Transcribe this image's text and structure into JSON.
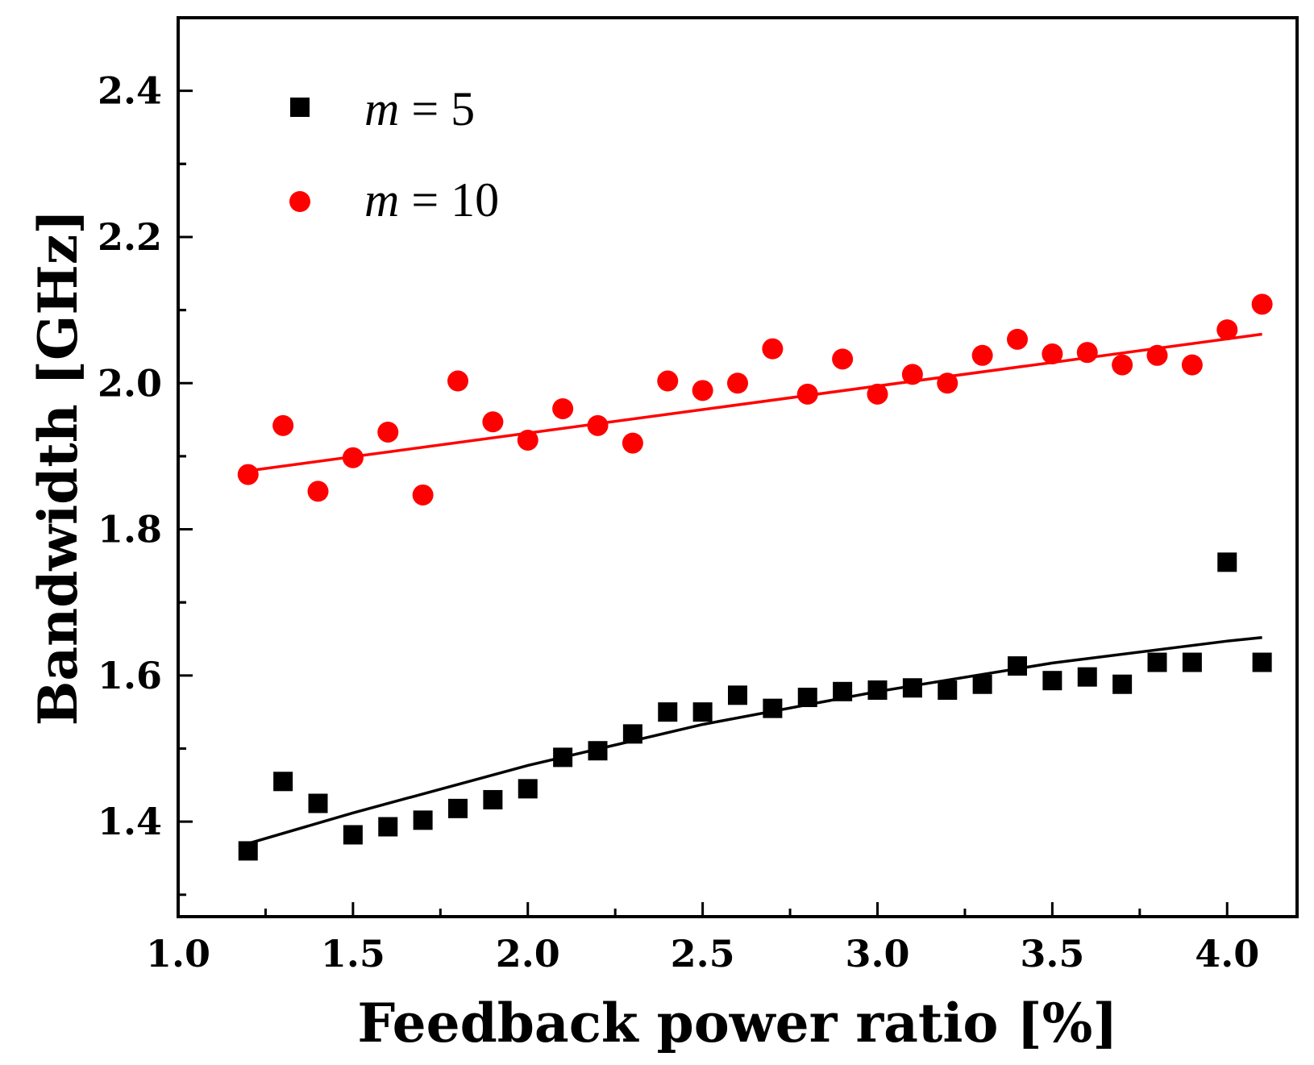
{
  "chart_data": {
    "type": "scatter",
    "xlabel": "Feedback power ratio [%]",
    "ylabel": "Bandwidth [GHz]",
    "xlim": [
      1.0,
      4.2
    ],
    "ylim": [
      1.27,
      2.5
    ],
    "x_ticks": [
      "1.0",
      "1.5",
      "2.0",
      "2.5",
      "3.0",
      "3.5",
      "4.0"
    ],
    "y_ticks": [
      "1.4",
      "1.6",
      "1.8",
      "2.0",
      "2.2",
      "2.4"
    ],
    "grid": false,
    "legend_position": "top-left",
    "series": [
      {
        "name": "m = 5",
        "legend_var": "m",
        "legend_rest": " = 5",
        "marker": "square",
        "color": "#000000",
        "x": [
          1.2,
          1.3,
          1.4,
          1.5,
          1.6,
          1.7,
          1.8,
          1.9,
          2.0,
          2.1,
          2.2,
          2.3,
          2.4,
          2.5,
          2.6,
          2.7,
          2.8,
          2.9,
          3.0,
          3.1,
          3.2,
          3.3,
          3.4,
          3.5,
          3.6,
          3.7,
          3.8,
          3.9,
          4.0,
          4.1
        ],
        "y": [
          1.36,
          1.455,
          1.425,
          1.382,
          1.393,
          1.402,
          1.418,
          1.43,
          1.445,
          1.488,
          1.497,
          1.52,
          1.55,
          1.55,
          1.573,
          1.555,
          1.57,
          1.578,
          1.58,
          1.583,
          1.58,
          1.588,
          1.613,
          1.593,
          1.598,
          1.588,
          1.618,
          1.618,
          1.755,
          1.618
        ],
        "fit": {
          "x": [
            1.2,
            1.5,
            2.0,
            2.5,
            3.0,
            3.5,
            4.0,
            4.1
          ],
          "y": [
            1.37,
            1.412,
            1.477,
            1.533,
            1.578,
            1.617,
            1.647,
            1.652
          ]
        }
      },
      {
        "name": "m = 10",
        "legend_var": "m",
        "legend_rest": " = 10",
        "marker": "circle",
        "color": "#ff0000",
        "x": [
          1.2,
          1.3,
          1.4,
          1.5,
          1.6,
          1.7,
          1.8,
          1.9,
          2.0,
          2.1,
          2.2,
          2.3,
          2.4,
          2.5,
          2.6,
          2.7,
          2.8,
          2.9,
          3.0,
          3.1,
          3.2,
          3.3,
          3.4,
          3.5,
          3.6,
          3.7,
          3.8,
          3.9,
          4.0,
          4.1
        ],
        "y": [
          1.875,
          1.942,
          1.852,
          1.898,
          1.933,
          1.847,
          2.003,
          1.947,
          1.922,
          1.965,
          1.942,
          1.918,
          2.003,
          1.99,
          2.0,
          2.047,
          1.985,
          2.033,
          1.985,
          2.012,
          2.0,
          2.038,
          2.06,
          2.04,
          2.042,
          2.025,
          2.038,
          2.025,
          2.073,
          2.108
        ],
        "fit": {
          "x": [
            1.2,
            4.1
          ],
          "y": [
            1.88,
            2.067
          ]
        }
      }
    ]
  }
}
